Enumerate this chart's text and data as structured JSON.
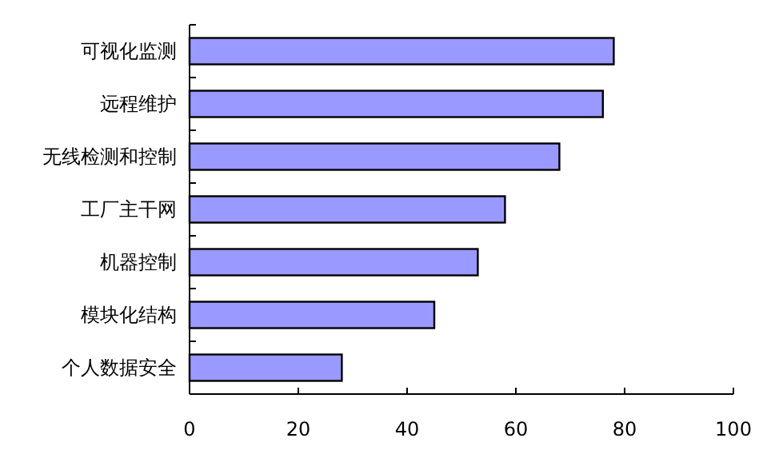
{
  "chart_data": {
    "type": "bar",
    "orientation": "horizontal",
    "categories": [
      "可视化监测",
      "远程维护",
      "无线检测和控制",
      "工厂主干网",
      "机器控制",
      "模块化结构",
      "个人数据安全"
    ],
    "values": [
      78,
      76,
      68,
      58,
      53,
      45,
      28
    ],
    "color": "#9999ff",
    "xlim": [
      0,
      100
    ],
    "xticks": [
      0,
      20,
      40,
      60,
      80,
      100
    ],
    "grid": false
  }
}
